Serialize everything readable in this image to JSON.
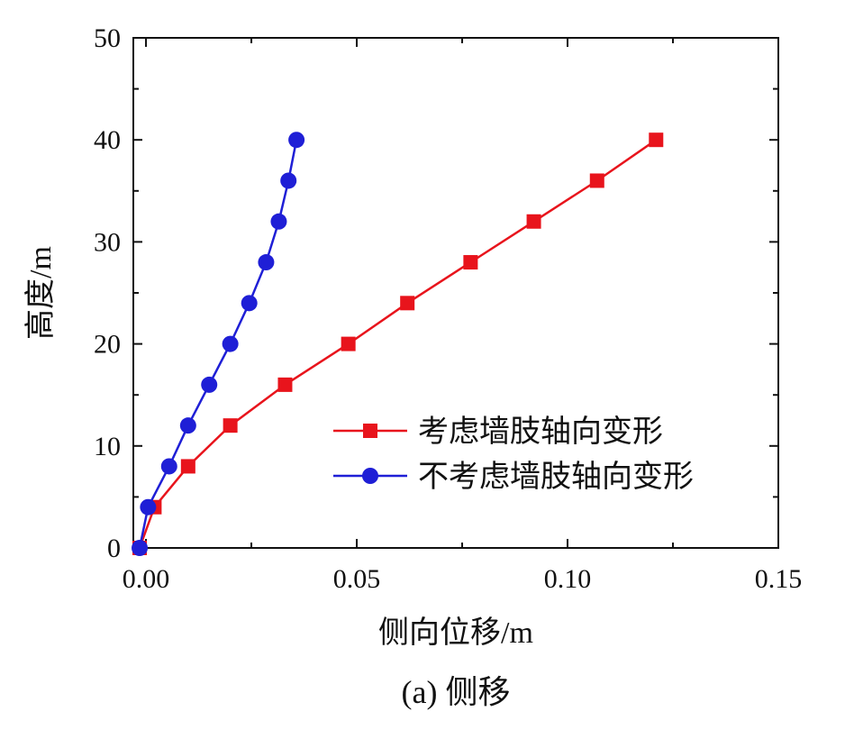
{
  "chart_data": {
    "type": "line",
    "title": "",
    "caption": "(a) 侧移",
    "xlabel": "侧向位移/m",
    "ylabel": "高度/m",
    "xlim": [
      -0.003,
      0.15
    ],
    "ylim": [
      0,
      50
    ],
    "x_ticks": [
      0.0,
      0.05,
      0.1,
      0.15
    ],
    "x_tick_labels": [
      "0.00",
      "0.05",
      "0.10",
      "0.15"
    ],
    "y_ticks": [
      0,
      10,
      20,
      30,
      40,
      50
    ],
    "y_tick_labels": [
      "0",
      "10",
      "20",
      "30",
      "40",
      "50"
    ],
    "grid": false,
    "legend_position": "lower-right",
    "series": [
      {
        "name": "考虑墙肢轴向变形",
        "color": "#e8141c",
        "marker": "square",
        "x": [
          -0.0015,
          0.002,
          0.01,
          0.02,
          0.033,
          0.048,
          0.062,
          0.077,
          0.092,
          0.107,
          0.121
        ],
        "y": [
          0,
          4,
          8,
          12,
          16,
          20,
          24,
          28,
          32,
          36,
          40
        ]
      },
      {
        "name": "不考虑墙肢轴向变形",
        "color": "#1f1fd6",
        "marker": "circle",
        "x": [
          -0.0015,
          0.0005,
          0.0055,
          0.01,
          0.015,
          0.02,
          0.0245,
          0.0285,
          0.0315,
          0.0338,
          0.0357
        ],
        "y": [
          0,
          4,
          8,
          12,
          16,
          20,
          24,
          28,
          32,
          36,
          40
        ]
      }
    ]
  }
}
